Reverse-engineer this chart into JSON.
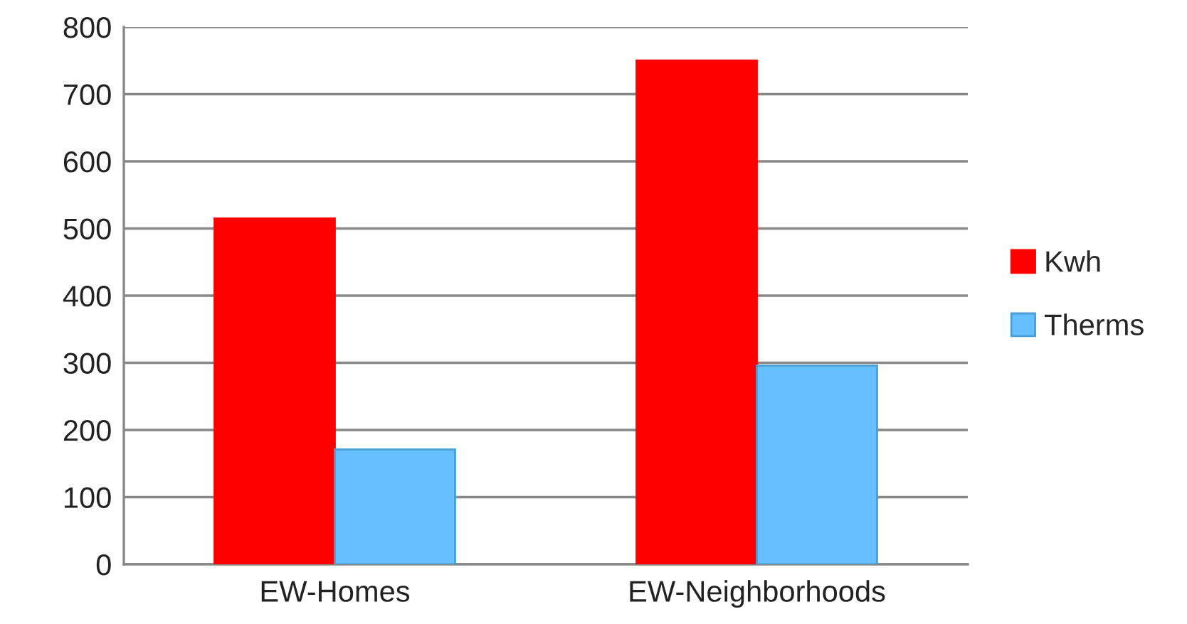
{
  "chart_data": {
    "type": "bar",
    "categories": [
      "EW-Homes",
      "EW-Neighborhoods"
    ],
    "series": [
      {
        "name": "Kwh",
        "color": "#ff0000",
        "values": [
          515,
          750
        ]
      },
      {
        "name": "Therms",
        "color": "#66bfff",
        "values": [
          171,
          296
        ]
      }
    ],
    "ylim": [
      0,
      800
    ],
    "yticks": [
      0,
      100,
      200,
      300,
      400,
      500,
      600,
      700,
      800
    ],
    "grid": "y",
    "legend": "right"
  }
}
